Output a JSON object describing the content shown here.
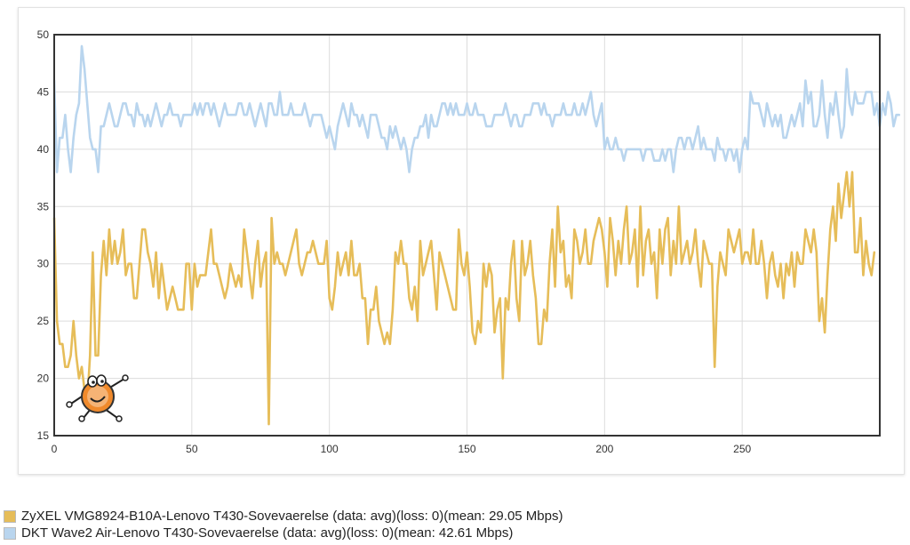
{
  "colors": {
    "zyxel": "#e6bd59",
    "dkt": "#b9d5ee",
    "grid": "#dcdcdc",
    "axis": "#333333",
    "mascot_body": "#f08a2c"
  },
  "mascot": {
    "icon": "cartoon-mascot-icon"
  },
  "legend": {
    "items": [
      {
        "label": "ZyXEL VMG8924-B10A-Lenovo T430-Sovevaerelse (data: avg)(loss: 0)(mean: 29.05 Mbps)",
        "color": "#e6bd59"
      },
      {
        "label": "DKT Wave2 Air-Lenovo T430-Sovevaerelse (data: avg)(loss: 0)(mean: 42.61 Mbps)",
        "color": "#b9d5ee"
      }
    ]
  },
  "chart_data": {
    "type": "line",
    "title": "",
    "xlabel": "",
    "ylabel": "",
    "xlim": [
      0,
      300
    ],
    "ylim": [
      15,
      50
    ],
    "x_ticks": [
      0,
      50,
      100,
      150,
      200,
      250
    ],
    "y_ticks": [
      15,
      20,
      25,
      30,
      35,
      40,
      45,
      50
    ],
    "grid": true,
    "legend_position": "bottom",
    "x_step": 1,
    "series": [
      {
        "name": "ZyXEL VMG8924-B10A-Lenovo T430-Sovevaerelse (data: avg)(loss: 0)(mean: 29.05 Mbps)",
        "color": "#e6bd59",
        "values": [
          34,
          25,
          23,
          23,
          21,
          21,
          22,
          25,
          22,
          20,
          21,
          19,
          18,
          22,
          31,
          22,
          22,
          29,
          32,
          29,
          33,
          30,
          32,
          30,
          31,
          33,
          29,
          30,
          30,
          27,
          27,
          30,
          33,
          33,
          31,
          30,
          28,
          31,
          27,
          30,
          28,
          26,
          27,
          28,
          27,
          26,
          26,
          26,
          30,
          30,
          26,
          30,
          28,
          29,
          29,
          29,
          31,
          33,
          30,
          30,
          29,
          28,
          27,
          28,
          30,
          29,
          28,
          29,
          28,
          33,
          31,
          29,
          27,
          30,
          32,
          28,
          30,
          31,
          16,
          34,
          30,
          31,
          30,
          30,
          29,
          30,
          31,
          32,
          33,
          30,
          29,
          30,
          31,
          31,
          32,
          31,
          30,
          30,
          30,
          32,
          27,
          26,
          28,
          31,
          29,
          30,
          31,
          29,
          32,
          29,
          29,
          30,
          27,
          27,
          23,
          26,
          26,
          28,
          25,
          24,
          23,
          24,
          23,
          26,
          31,
          30,
          32,
          30,
          30,
          27,
          26,
          28,
          25,
          32,
          29,
          30,
          31,
          32,
          29,
          26,
          31,
          30,
          29,
          28,
          27,
          26,
          26,
          33,
          30,
          29,
          31,
          28,
          24,
          23,
          25,
          24,
          30,
          28,
          30,
          29,
          24,
          26,
          27,
          20,
          27,
          26,
          30,
          32,
          27,
          25,
          32,
          29,
          30,
          32,
          29,
          27,
          23,
          23,
          26,
          25,
          30,
          33,
          28,
          35,
          31,
          32,
          28,
          29,
          27,
          33,
          32,
          30,
          31,
          33,
          30,
          30,
          32,
          33,
          34,
          33,
          31,
          28,
          34,
          32,
          29,
          32,
          30,
          33,
          35,
          30,
          31,
          33,
          28,
          35,
          29,
          32,
          33,
          30,
          31,
          27,
          33,
          30,
          33,
          34,
          29,
          32,
          30,
          35,
          30,
          31,
          32,
          30,
          31,
          33,
          30,
          28,
          32,
          31,
          30,
          30,
          21,
          28,
          31,
          30,
          29,
          33,
          32,
          31,
          32,
          33,
          30,
          31,
          31,
          30,
          33,
          30,
          30,
          32,
          30,
          27,
          30,
          31,
          29,
          28,
          30,
          27,
          30,
          29,
          31,
          28,
          31,
          30,
          30,
          33,
          32,
          31,
          33,
          31,
          25,
          27,
          24,
          29,
          33,
          35,
          32,
          37,
          34,
          36,
          38,
          35,
          38,
          31,
          31,
          34,
          29,
          32,
          30,
          29,
          31
        ]
      },
      {
        "name": "DKT Wave2 Air-Lenovo T430-Sovevaerelse (data: avg)(loss: 0)(mean: 42.61 Mbps)",
        "color": "#b9d5ee",
        "values": [
          46,
          38,
          41,
          41,
          43,
          40,
          38,
          41,
          43,
          44,
          49,
          47,
          44,
          41,
          40,
          40,
          38,
          42,
          42,
          43,
          44,
          43,
          42,
          42,
          43,
          44,
          44,
          43,
          43,
          42,
          44,
          43,
          43,
          42,
          43,
          42,
          43,
          44,
          43,
          42,
          43,
          43,
          44,
          43,
          43,
          43,
          42,
          43,
          43,
          43,
          43,
          44,
          43,
          44,
          43,
          44,
          44,
          43,
          44,
          43,
          42,
          43,
          44,
          43,
          43,
          43,
          43,
          44,
          44,
          43,
          43,
          44,
          43,
          42,
          43,
          44,
          43,
          42,
          44,
          44,
          43,
          43,
          45,
          43,
          43,
          43,
          44,
          43,
          43,
          43,
          43,
          44,
          43,
          42,
          43,
          43,
          43,
          43,
          42,
          41,
          42,
          41,
          40,
          42,
          43,
          44,
          43,
          42,
          44,
          43,
          43,
          42,
          43,
          42,
          41,
          43,
          43,
          43,
          42,
          41,
          41,
          40,
          42,
          41,
          42,
          41,
          40,
          41,
          40,
          38,
          40,
          41,
          41,
          42,
          42,
          43,
          41,
          43,
          42,
          42,
          43,
          44,
          44,
          43,
          44,
          43,
          44,
          43,
          43,
          43,
          44,
          43,
          43,
          44,
          43,
          43,
          43,
          42,
          42,
          42,
          43,
          43,
          43,
          43,
          44,
          43,
          42,
          43,
          43,
          42,
          42,
          43,
          43,
          43,
          44,
          44,
          44,
          43,
          44,
          43,
          43,
          42,
          43,
          43,
          43,
          44,
          43,
          43,
          43,
          44,
          43,
          43,
          44,
          43,
          44,
          45,
          43,
          42,
          43,
          44,
          40,
          41,
          40,
          40,
          41,
          40,
          40,
          39,
          40,
          40,
          40,
          40,
          40,
          40,
          39,
          40,
          40,
          40,
          39,
          39,
          39,
          40,
          39,
          40,
          40,
          38,
          40,
          41,
          41,
          40,
          41,
          41,
          40,
          41,
          42,
          40,
          41,
          40,
          40,
          40,
          39,
          41,
          40,
          40,
          39,
          40,
          40,
          39,
          40,
          38,
          40,
          41,
          40,
          45,
          44,
          44,
          44,
          43,
          42,
          44,
          43,
          42,
          43,
          42,
          43,
          41,
          41,
          42,
          43,
          42,
          43,
          44,
          42,
          46,
          44,
          45,
          42,
          42,
          43,
          46,
          43,
          41,
          44,
          43,
          45,
          43,
          41,
          42,
          47,
          44,
          43,
          45,
          44,
          44,
          44,
          45,
          45,
          45,
          43,
          44,
          42,
          44,
          43,
          45,
          44,
          42,
          43,
          43
        ]
      }
    ]
  }
}
